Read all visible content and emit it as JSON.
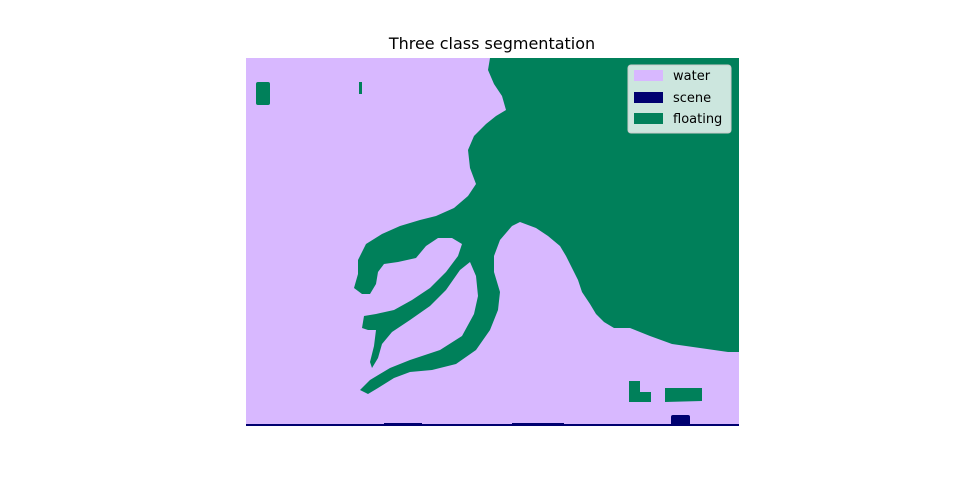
{
  "chart_data": {
    "type": "heatmap",
    "title": "Three class segmentation",
    "axes": "off",
    "legend_placement": "top-right",
    "classes": [
      {
        "name": "water",
        "color": "#d8b8ff"
      },
      {
        "name": "scene",
        "color": "#000070"
      },
      {
        "name": "floating",
        "color": "#00805a"
      }
    ]
  }
}
